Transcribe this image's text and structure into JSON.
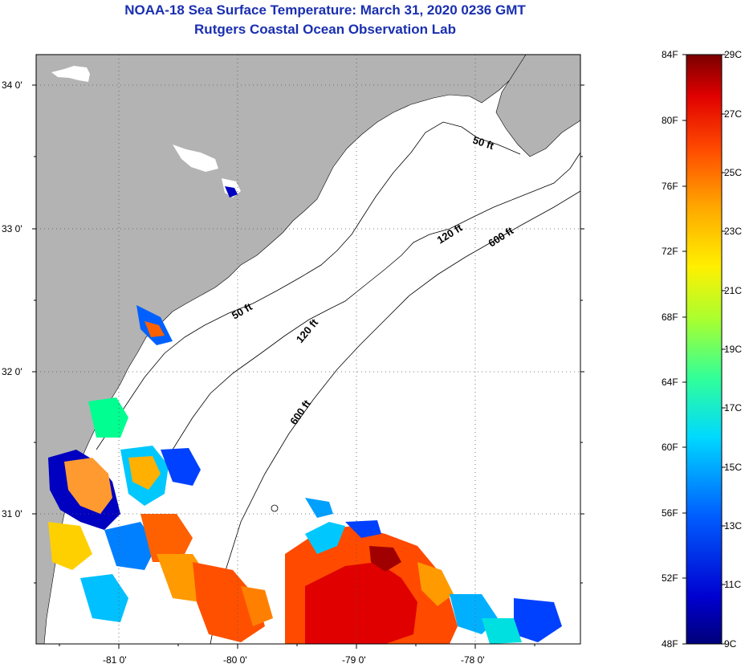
{
  "header": {
    "title": "NOAA-18 Sea Surface Temperature:  March 31, 2020 0236 GMT",
    "subtitle": "Rutgers Coastal Ocean Observation Lab"
  },
  "map": {
    "lon_range": [
      -81.7,
      -77.2
    ],
    "lat_range": [
      30.2,
      34.2
    ],
    "lon_ticks": [
      "-81 0'",
      "-80 0'",
      "-79 0'",
      "-78 0'"
    ],
    "lat_ticks": [
      "34 0'",
      "33 0'",
      "32 0'",
      "31 0'"
    ],
    "land_color": "#b3b3b3",
    "ocean_nodata_color": "#ffffff",
    "contours": [
      {
        "label": "50 ft",
        "depth_ft": 50
      },
      {
        "label": "50 ft",
        "depth_ft": 50
      },
      {
        "label": "120 ft",
        "depth_ft": 120
      },
      {
        "label": "120 ft",
        "depth_ft": 120
      },
      {
        "label": "600 ft",
        "depth_ft": 600
      },
      {
        "label": "600 ft",
        "depth_ft": 600
      }
    ]
  },
  "colorbar": {
    "fahrenheit_labels": [
      "84F",
      "80F",
      "76F",
      "72F",
      "68F",
      "64F",
      "60F",
      "56F",
      "52F",
      "48F"
    ],
    "celsius_labels": [
      "29C",
      "27C",
      "25C",
      "23C",
      "21C",
      "19C",
      "17C",
      "15C",
      "13C",
      "11C",
      "9C"
    ],
    "colors": [
      "#7a0000",
      "#e00000",
      "#ff4a00",
      "#ff9a00",
      "#ffe600",
      "#c8ff30",
      "#50ff90",
      "#00e8e8",
      "#00a0ff",
      "#0040ff",
      "#0000b0",
      "#00007a"
    ]
  }
}
